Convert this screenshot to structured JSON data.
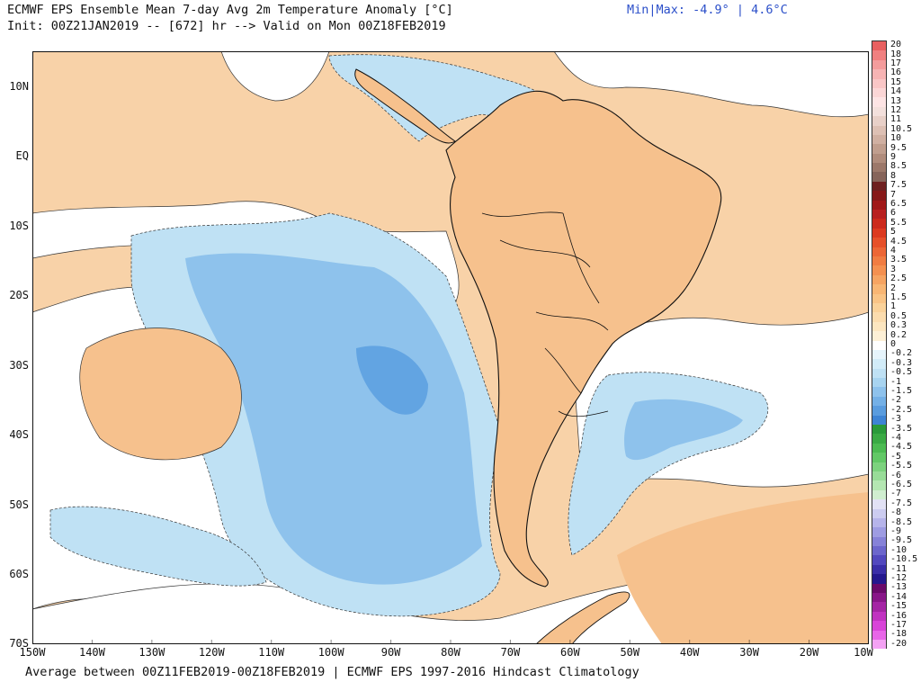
{
  "header": {
    "title": "ECMWF EPS Ensemble Mean 7-day Avg 2m Temperature Anomaly [°C]",
    "init": "Init: 00Z21JAN2019 -- [672] hr --> Valid on Mon 00Z18FEB2019",
    "minmax": "Min|Max: -4.9° | 4.6°C"
  },
  "footer": "Average between 00Z11FEB2019-00Z18FEB2019 | ECMWF EPS 1997-2016 Hindcast Climatology",
  "map": {
    "lat_labels": [
      "10N",
      "EQ",
      "10S",
      "20S",
      "30S",
      "40S",
      "50S",
      "60S",
      "70S"
    ],
    "lon_labels": [
      "150W",
      "140W",
      "130W",
      "120W",
      "110W",
      "100W",
      "90W",
      "80W",
      "70W",
      "60W",
      "50W",
      "40W",
      "30W",
      "20W",
      "10W"
    ],
    "lat_range": [
      -70,
      15
    ],
    "lon_range": [
      -150,
      -10
    ],
    "land_color": "#f6c18d",
    "warm_color": "#f8d2a8",
    "cool_light": "#bfe1f4",
    "cool_mid": "#8ec2ec",
    "cool_dark": "#62a4e2",
    "neutral": "#ffffff"
  },
  "colorbar": {
    "labels": [
      "20",
      "18",
      "17",
      "16",
      "15",
      "14",
      "13",
      "12",
      "11",
      "10.5",
      "10",
      "9.5",
      "9",
      "8.5",
      "8",
      "7.5",
      "7",
      "6.5",
      "6",
      "5.5",
      "5",
      "4.5",
      "4",
      "3.5",
      "3",
      "2.5",
      "2",
      "1.5",
      "1",
      "0.5",
      "0.3",
      "0.2",
      "0",
      "-0.2",
      "-0.3",
      "-0.5",
      "-1",
      "-1.5",
      "-2",
      "-2.5",
      "-3",
      "-3.5",
      "-4",
      "-4.5",
      "-5",
      "-5.5",
      "-6",
      "-6.5",
      "-7",
      "-7.5",
      "-8",
      "-8.5",
      "-9",
      "-9.5",
      "-10",
      "-10.5",
      "-11",
      "-12",
      "-13",
      "-14",
      "-15",
      "-16",
      "-17",
      "-18",
      "-20"
    ],
    "colors": [
      "#e86060",
      "#f08080",
      "#f49c9c",
      "#f7b4b4",
      "#f9c6c6",
      "#fbd6d6",
      "#fde4e4",
      "#f3e0dc",
      "#e8d0c8",
      "#ddc0b4",
      "#d0b0a2",
      "#c09e8e",
      "#b08c7c",
      "#9c786a",
      "#86645a",
      "#6e2020",
      "#861818",
      "#a01818",
      "#b82020",
      "#cc2a1c",
      "#dc3a20",
      "#e6502a",
      "#ec6636",
      "#f07c42",
      "#f49050",
      "#f6a462",
      "#f8b674",
      "#f9c486",
      "#fad29a",
      "#fbdcae",
      "#fce6c0",
      "#fdf0d6",
      "#ffffff",
      "#e6f4fb",
      "#d2ecf8",
      "#bfe1f4",
      "#a8d4f0",
      "#8ec2ec",
      "#74b0e6",
      "#5a9cde",
      "#3e84d4",
      "#2a9a3a",
      "#3aaa44",
      "#4cbb52",
      "#62c866",
      "#7cd27e",
      "#98dc98",
      "#b4e6b2",
      "#d0eed0",
      "#e2e2f4",
      "#ccccf0",
      "#b6b4ea",
      "#9e9ce2",
      "#8682d8",
      "#6c66cc",
      "#5248be",
      "#3a2ea8",
      "#24188e",
      "#6a0a6a",
      "#881688",
      "#a424a4",
      "#c032c0",
      "#d844d8",
      "#e866e8",
      "#f4a2f4"
    ]
  }
}
